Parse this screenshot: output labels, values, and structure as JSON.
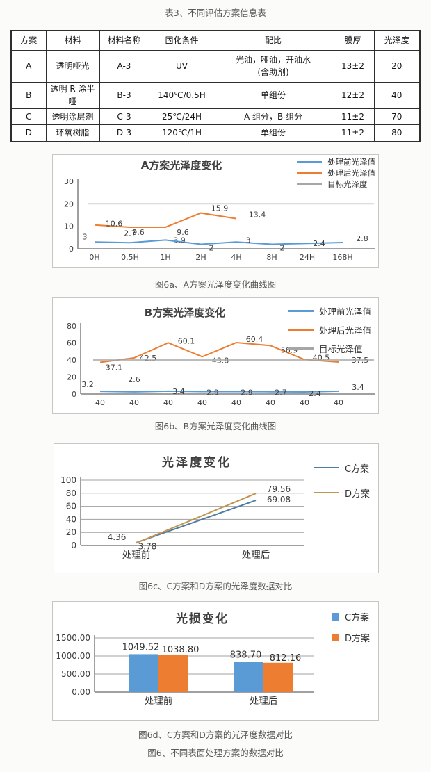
{
  "page": {
    "table_title": "表3、不同评估方案信息表",
    "figure_caption_final": "图6、不同表面处理方案的数据对比"
  },
  "table": {
    "headers": [
      "方案",
      "材料",
      "材料名称",
      "固化条件",
      "配比",
      "膜厚",
      "光泽度"
    ],
    "rows": [
      [
        "A",
        "透明哑光",
        "A-3",
        "UV",
        "光油，哑油，开油水\n(含助剂)",
        "13±2",
        "20"
      ],
      [
        "B",
        "透明 R 涂半哑",
        "B-3",
        "140℃/0.5H",
        "单组份",
        "12±2",
        "40"
      ],
      [
        "C",
        "透明涂层剂",
        "C-3",
        "25℃/24H",
        "A 组分，B 组分",
        "11±2",
        "70"
      ],
      [
        "D",
        "环氧树脂",
        "D-3",
        "120℃/1H",
        "单组份",
        "11±2",
        "80"
      ]
    ]
  },
  "chart_data": [
    {
      "type": "line",
      "title": "A方案光泽度变化",
      "caption": "图6a、A方案光泽度变化曲线图",
      "categories": [
        "0H",
        "0.5H",
        "1H",
        "2H",
        "4H",
        "8H",
        "24H",
        "168H"
      ],
      "ylim": [
        0,
        30
      ],
      "yticks": [
        "0",
        "10",
        "20",
        "30"
      ],
      "grid": false,
      "legend_position": "top-right",
      "legend_marker": "line",
      "series": [
        {
          "name": "处理前光泽值",
          "color": "#5b9bd5",
          "values": [
            3,
            2.7,
            3.9,
            2,
            3,
            2,
            2.4,
            2.8
          ],
          "labels": [
            "3",
            "2.7",
            "3.9",
            "2",
            "3",
            "2",
            "2.4",
            "2.8"
          ],
          "offsets": [
            [
              -14,
              -4
            ],
            [
              0,
              -10
            ],
            [
              20,
              4
            ],
            [
              15,
              9
            ],
            [
              17,
              1
            ],
            [
              15,
              9
            ],
            [
              17,
              4
            ],
            [
              28,
              -2
            ]
          ]
        },
        {
          "name": "处理后光泽值",
          "color": "#ed7d31",
          "values": [
            10.6,
            9.6,
            9.6,
            15.9,
            13.4,
            null,
            null,
            null
          ],
          "labels": [
            "10.6",
            "9.6",
            "9.6",
            "15.9",
            "13.4"
          ],
          "offsets": [
            [
              28,
              2
            ],
            [
              12,
              11
            ],
            [
              25,
              11
            ],
            [
              27,
              -3
            ],
            [
              30,
              -2
            ]
          ]
        },
        {
          "name": "目标光泽度",
          "color": "#a6a6a6",
          "flat": true,
          "values": [
            20,
            20,
            20,
            20,
            20,
            20,
            20,
            20
          ]
        }
      ]
    },
    {
      "type": "line",
      "title": "B方案光泽度变化",
      "caption": "图6b、B方案光泽度变化曲线图",
      "categories": [
        "40",
        "40",
        "40",
        "40",
        "40",
        "40",
        "40",
        "40"
      ],
      "ylim": [
        0,
        80
      ],
      "yticks": [
        "0",
        "20",
        "40",
        "60",
        "80"
      ],
      "grid": false,
      "legend_position": "top-right",
      "legend_marker": "line",
      "series": [
        {
          "name": "处理前光泽值",
          "color": "#5b9bd5",
          "values": [
            3.2,
            2.6,
            3.4,
            2.9,
            2.9,
            2.7,
            2.4,
            3.4
          ],
          "labels": [
            "3.2",
            "2.6",
            "3.4",
            "2.9",
            "2.9",
            "2.7",
            "2.4",
            "3.4"
          ],
          "offsets": [
            [
              -18,
              -6
            ],
            [
              0,
              -14
            ],
            [
              15,
              4
            ],
            [
              15,
              5
            ],
            [
              15,
              5
            ],
            [
              15,
              5
            ],
            [
              15,
              6
            ],
            [
              28,
              -2
            ]
          ]
        },
        {
          "name": "处理后光泽值",
          "color": "#ed7d31",
          "values": [
            37.1,
            42.5,
            60.1,
            43.8,
            60.4,
            56.9,
            40.5,
            37.5
          ],
          "labels": [
            "37.1",
            "42.5",
            "60.1",
            "43.8",
            "60.4",
            "56.9",
            "40.5",
            "37.5"
          ],
          "offsets": [
            [
              20,
              11
            ],
            [
              20,
              4
            ],
            [
              26,
              1
            ],
            [
              26,
              9
            ],
            [
              26,
              -1
            ],
            [
              27,
              10
            ],
            [
              24,
              1
            ],
            [
              31,
              1
            ]
          ]
        },
        {
          "name": "目标光泽值",
          "color": "#a6a6a6",
          "flat": true,
          "values": [
            40,
            40,
            40,
            40,
            40,
            40,
            40,
            40
          ]
        }
      ]
    },
    {
      "type": "line",
      "title": "光泽度变化",
      "caption": "图6c、C方案和D方案的光泽度数据对比",
      "categories": [
        "处理前",
        "处理后"
      ],
      "ylim": [
        0,
        100
      ],
      "yticks": [
        "0",
        "20",
        "40",
        "60",
        "80",
        "100"
      ],
      "grid": true,
      "legend_position": "top-right",
      "legend_marker": "line",
      "series": [
        {
          "name": "C方案",
          "color": "#4e7ca1",
          "values": [
            4.36,
            69.08
          ],
          "labels": [
            "4.36",
            "69.08"
          ],
          "offsets": [
            [
              -28,
              -4
            ],
            [
              33,
              3
            ]
          ]
        },
        {
          "name": "D方案",
          "color": "#c0954f",
          "values": [
            3.78,
            79.56
          ],
          "labels": [
            "3.78",
            "79.56"
          ],
          "offsets": [
            [
              16,
              9
            ],
            [
              33,
              -2
            ]
          ]
        }
      ]
    },
    {
      "type": "bar",
      "title": "光损变化",
      "caption": "图6d、C方案和D方案的光泽度数据对比",
      "categories": [
        "处理前",
        "处理后"
      ],
      "ylim": [
        0,
        1500
      ],
      "yticks": [
        "0.00",
        "500.00",
        "1000.00",
        "1500.00"
      ],
      "grid": true,
      "legend_position": "top-right",
      "legend_marker": "square",
      "series": [
        {
          "name": "C方案",
          "color": "#5b9bd5",
          "values": [
            1049.52,
            838.7
          ],
          "labels": [
            "1049.52",
            "838.70"
          ],
          "offsets": [
            [
              -4,
              -6
            ],
            [
              -4,
              -6
            ]
          ]
        },
        {
          "name": "D方案",
          "color": "#ed7d31",
          "values": [
            1038.8,
            812.16
          ],
          "labels": [
            "1038.80",
            "812.16"
          ],
          "offsets": [
            [
              10,
              -3
            ],
            [
              10,
              -3
            ]
          ]
        }
      ]
    }
  ]
}
